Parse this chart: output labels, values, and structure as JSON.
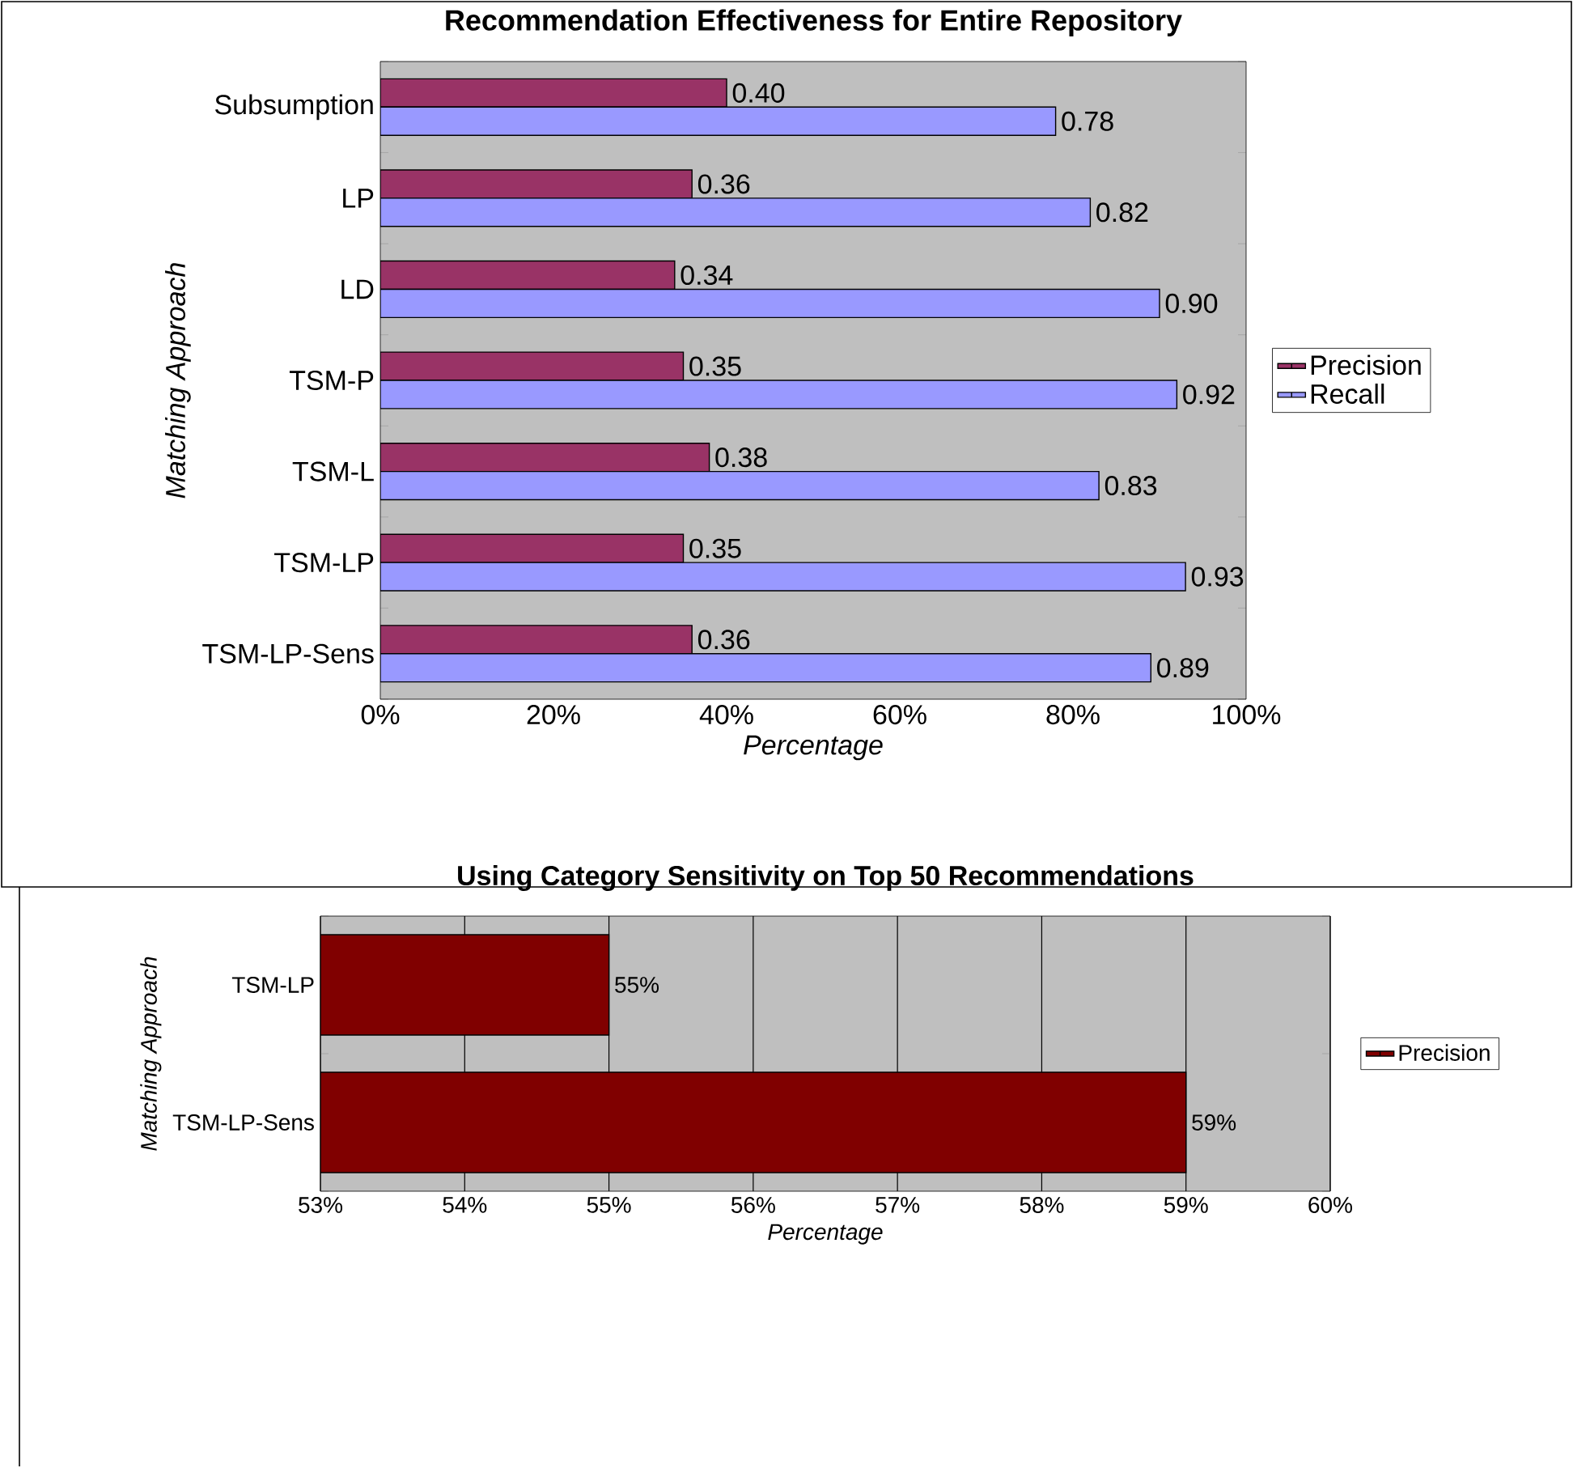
{
  "chart_data": [
    {
      "type": "bar",
      "orientation": "horizontal",
      "title": "Recommendation Effectiveness for Entire Repository",
      "xlabel": "Percentage",
      "ylabel": "Matching Approach",
      "categories": [
        "Subsumption",
        "LP",
        "LD",
        "TSM-P",
        "TSM-L",
        "TSM-LP",
        "TSM-LP-Sens"
      ],
      "series": [
        {
          "name": "Precision",
          "color": "#993366",
          "values": [
            0.4,
            0.36,
            0.34,
            0.35,
            0.38,
            0.35,
            0.36
          ],
          "value_labels": [
            "0.40",
            "0.36",
            "0.34",
            "0.35",
            "0.38",
            "0.35",
            "0.36"
          ]
        },
        {
          "name": "Recall",
          "color": "#9999ff",
          "values": [
            0.78,
            0.82,
            0.9,
            0.92,
            0.83,
            0.93,
            0.89
          ],
          "value_labels": [
            "0.78",
            "0.82",
            "0.90",
            "0.92",
            "0.83",
            "0.93",
            "0.89"
          ]
        }
      ],
      "xlim": [
        0,
        1
      ],
      "xticks": [
        {
          "value": 0,
          "label": "0%"
        },
        {
          "value": 0.2,
          "label": "20%"
        },
        {
          "value": 0.4,
          "label": "40%"
        },
        {
          "value": 0.6,
          "label": "60%"
        },
        {
          "value": 0.8,
          "label": "80%"
        },
        {
          "value": 1,
          "label": "100%"
        }
      ],
      "legend": "right",
      "grid": false
    },
    {
      "type": "bar",
      "orientation": "horizontal",
      "title": "Using Category Sensitivity on Top 50 Recommendations",
      "xlabel": "Percentage",
      "ylabel": "Matching Approach",
      "categories": [
        "TSM-LP",
        "TSM-LP-Sens"
      ],
      "series": [
        {
          "name": "Precision",
          "color": "#800000",
          "values": [
            55,
            59
          ],
          "value_labels": [
            "55%",
            "59%"
          ]
        }
      ],
      "xlim": [
        53,
        60
      ],
      "xticks": [
        {
          "value": 53,
          "label": "53%"
        },
        {
          "value": 54,
          "label": "54%"
        },
        {
          "value": 55,
          "label": "55%"
        },
        {
          "value": 56,
          "label": "56%"
        },
        {
          "value": 57,
          "label": "57%"
        },
        {
          "value": 58,
          "label": "58%"
        },
        {
          "value": 59,
          "label": "59%"
        },
        {
          "value": 60,
          "label": "60%"
        }
      ],
      "legend": "right",
      "grid": "x"
    }
  ]
}
